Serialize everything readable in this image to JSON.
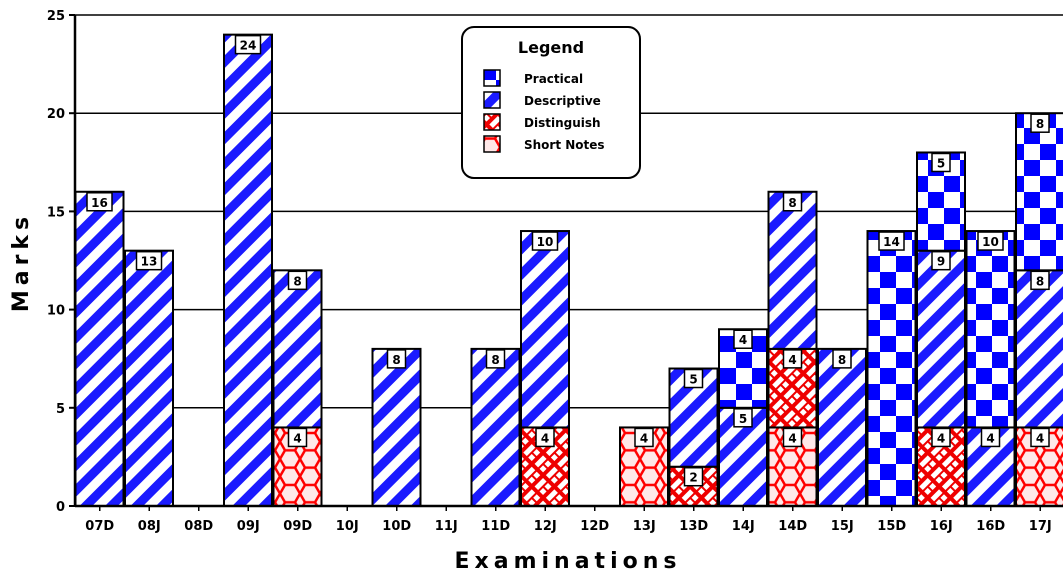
{
  "chart_data": {
    "type": "bar",
    "stacked": true,
    "title": "",
    "xlabel": "Examinations",
    "ylabel": "Marks",
    "ylim": [
      0,
      25
    ],
    "yticks": [
      0,
      5,
      10,
      15,
      20,
      25
    ],
    "grid": "horizontal",
    "legend": {
      "title": "Legend",
      "placement": "top-center",
      "order": [
        "Practical",
        "Descriptive",
        "Distinguish",
        "Short Notes"
      ]
    },
    "categories": [
      "07D",
      "08J",
      "08D",
      "09J",
      "09D",
      "10J",
      "10D",
      "11J",
      "11D",
      "12J",
      "12D",
      "13J",
      "13D",
      "14J",
      "14D",
      "15J",
      "15D",
      "16J",
      "16D",
      "17J"
    ],
    "series": [
      {
        "name": "Short Notes",
        "values": [
          0,
          0,
          0,
          0,
          4,
          0,
          0,
          0,
          0,
          0,
          0,
          4,
          0,
          0,
          4,
          0,
          0,
          0,
          0,
          4
        ],
        "labels": [
          "",
          "",
          "",
          "",
          "4",
          "",
          "",
          "",
          "",
          "",
          "",
          "4",
          "",
          "",
          "4",
          "",
          "",
          "",
          "",
          "4"
        ]
      },
      {
        "name": "Distinguish",
        "values": [
          0,
          0,
          0,
          0,
          0,
          0,
          0,
          0,
          0,
          4,
          0,
          0,
          2,
          0,
          4,
          0,
          0,
          4,
          0,
          0
        ],
        "labels": [
          "",
          "",
          "",
          "",
          "",
          "",
          "",
          "",
          "",
          "4",
          "",
          "",
          "2",
          "",
          "4",
          "",
          "",
          "4",
          "",
          ""
        ]
      },
      {
        "name": "Descriptive",
        "values": [
          16,
          13,
          0,
          24,
          8,
          0,
          8,
          0,
          8,
          10,
          0,
          0,
          5,
          5,
          8,
          8,
          0,
          9,
          4,
          8
        ],
        "labels": [
          "16",
          "13",
          "",
          "24",
          "8",
          "",
          "8",
          "",
          "8",
          "10",
          "",
          "",
          "5",
          "5",
          "8",
          "8",
          "",
          "9",
          "4",
          "8"
        ]
      },
      {
        "name": "Practical",
        "values": [
          0,
          0,
          0,
          0,
          0,
          0,
          0,
          0,
          0,
          0,
          0,
          0,
          0,
          4,
          0,
          0,
          14,
          5,
          10,
          8
        ],
        "labels": [
          "",
          "",
          "",
          "",
          "",
          "",
          "",
          "",
          "",
          "",
          "",
          "",
          "",
          "4",
          "",
          "",
          "14",
          "5",
          "10",
          "8"
        ]
      }
    ],
    "colors": {
      "Practical": "#0000ff",
      "Descriptive": "#1a1aff",
      "Distinguish": "#ee0000",
      "Short Notes": "#ff2222"
    }
  }
}
